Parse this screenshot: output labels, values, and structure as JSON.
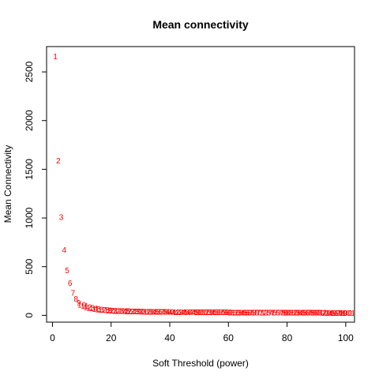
{
  "chart_data": {
    "type": "scatter",
    "title": "Mean connectivity",
    "xlabel": "Soft Threshold (power)",
    "ylabel": "Mean Connectivity",
    "xlim": [
      -2,
      103
    ],
    "ylim": [
      -70,
      2760
    ],
    "x_ticks": [
      0,
      20,
      40,
      60,
      80,
      100
    ],
    "y_ticks": [
      0,
      500,
      1000,
      1500,
      2000,
      2500
    ],
    "point_color": "#ff0000",
    "point_label": "power",
    "grid": false,
    "legend": "none",
    "series": [
      {
        "x": [
          1,
          2,
          3,
          4,
          5,
          6,
          7,
          8,
          9,
          10,
          11,
          12,
          13,
          14,
          15,
          16,
          17,
          18,
          19,
          20,
          21,
          22,
          23,
          24,
          25,
          26,
          27,
          28,
          29,
          30,
          31,
          32,
          33,
          34,
          35,
          36,
          37,
          38,
          39,
          40,
          41,
          42,
          43,
          44,
          45,
          46,
          47,
          48,
          49,
          50,
          51,
          52,
          53,
          54,
          55,
          56,
          57,
          58,
          59,
          60,
          61,
          62,
          63,
          64,
          65,
          66,
          67,
          68,
          69,
          70,
          71,
          72,
          73,
          74,
          75,
          76,
          77,
          78,
          79,
          80,
          81,
          82,
          83,
          84,
          85,
          86,
          87,
          88,
          89,
          90,
          91,
          92,
          93,
          94,
          95,
          96,
          97,
          98,
          99,
          100,
          101
        ],
        "y": [
          2660,
          1590,
          1010,
          670,
          460,
          330,
          230,
          170,
          130,
          110,
          95,
          85,
          75,
          70,
          65,
          60,
          57,
          54,
          51,
          49,
          47,
          45,
          44,
          43,
          42,
          41,
          40,
          39,
          38,
          38,
          37,
          37,
          36,
          36,
          35,
          35,
          35,
          34,
          34,
          34,
          33,
          33,
          33,
          33,
          32,
          32,
          32,
          32,
          32,
          31,
          31,
          31,
          31,
          31,
          30,
          30,
          30,
          30,
          30,
          30,
          29,
          29,
          29,
          29,
          29,
          29,
          29,
          28,
          28,
          28,
          28,
          28,
          28,
          28,
          28,
          27,
          27,
          27,
          27,
          27,
          27,
          27,
          27,
          26,
          26,
          26,
          26,
          26,
          26,
          26,
          26,
          26,
          25,
          25,
          25,
          25,
          25,
          25,
          25,
          25,
          25
        ]
      }
    ]
  }
}
